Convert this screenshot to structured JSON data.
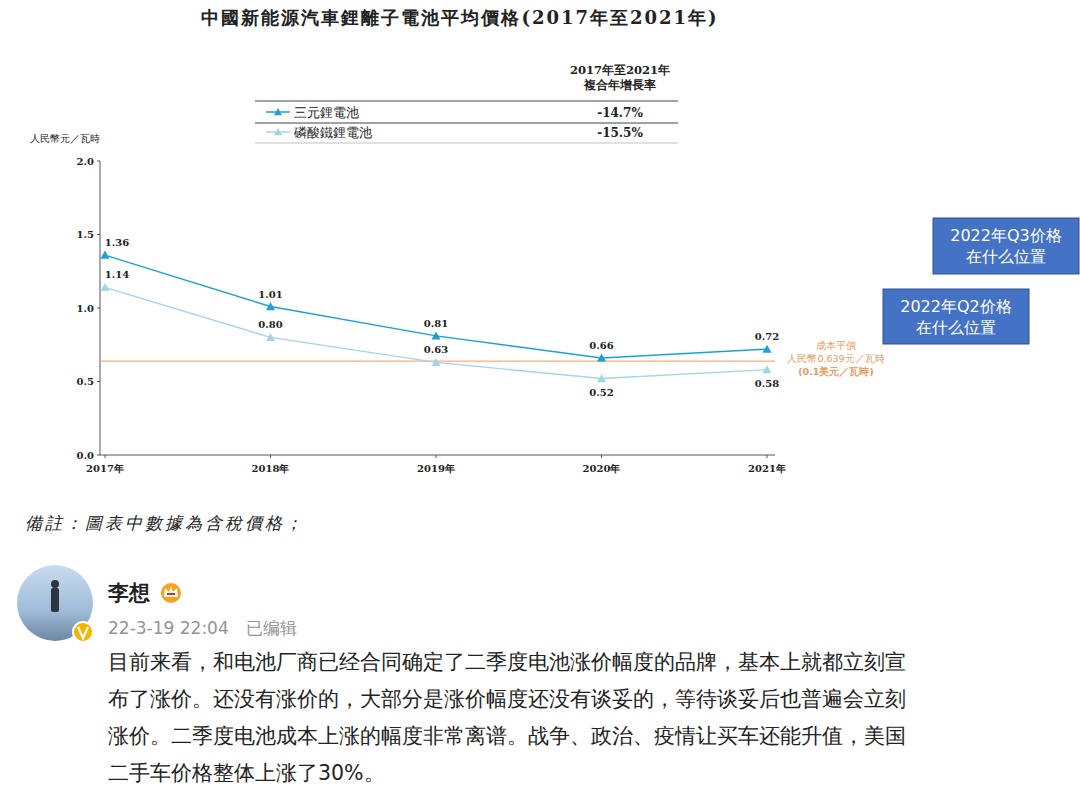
{
  "chart_data": {
    "type": "line",
    "title": "中國新能源汽車鋰離子電池平均價格(2017年至2021年)",
    "ylabel": "人民幣元／瓦時",
    "categories": [
      "2017年",
      "2018年",
      "2019年",
      "2020年",
      "2021年"
    ],
    "legend_title": [
      "2017年至2021年",
      "複合年增長率"
    ],
    "series": [
      {
        "name": "三元鋰電池",
        "color": "#1ba1d4",
        "marker": "triangle",
        "line_style": "solid",
        "values": [
          1.36,
          1.01,
          0.81,
          0.66,
          0.72
        ],
        "value_labels": [
          "1.36",
          "1.01",
          "0.81",
          "0.66",
          "0.72"
        ],
        "cagr": -14.7,
        "cagr_label": "-14.7%"
      },
      {
        "name": "磷酸鐵鋰電池",
        "color": "#a3d5e8",
        "marker": "triangle",
        "line_style": "solid",
        "values": [
          1.14,
          0.8,
          0.63,
          0.52,
          0.58
        ],
        "value_labels": [
          "1.14",
          "0.80",
          "0.63",
          "0.52",
          "0.58"
        ],
        "cagr": -15.5,
        "cagr_label": "-15.5%"
      }
    ],
    "reference_line": {
      "value": 0.639,
      "color": "#f4b183",
      "label": [
        "成本平價",
        "人民幣0.639元／瓦時",
        "(0.1美元／瓦時)"
      ]
    },
    "ylim": [
      0,
      2
    ],
    "yticks": [
      {
        "value": 0,
        "label": "0.0"
      },
      {
        "value": 0.5,
        "label": "0.5"
      },
      {
        "value": 1,
        "label": "1.0"
      },
      {
        "value": 1.5,
        "label": "1.5"
      },
      {
        "value": 2,
        "label": "2.0"
      }
    ],
    "grid": false,
    "data_labels": true
  },
  "note": "備註：圖表中數據為含稅價格；",
  "callouts": [
    {
      "lines": [
        "2022年Q3价格",
        "在什么位置"
      ],
      "color": "#4472c4"
    },
    {
      "lines": [
        "2022年Q2价格",
        "在什么位置"
      ],
      "color": "#4472c4"
    }
  ],
  "post": {
    "author": "李想",
    "time": "22-3-19 22:04",
    "edited": "已编辑",
    "text_lines": [
      "目前来看，和电池厂商已经合同确定了二季度电池涨价幅度的品牌，基本上就都立刻宣",
      "布了涨价。还没有涨价的，大部分是涨价幅度还没有谈妥的，等待谈妥后也普遍会立刻",
      "涨价。二季度电池成本上涨的幅度非常离谱。战争、政治、疫情让买车还能升值，美国",
      "二手车价格整体上涨了30%。"
    ]
  }
}
